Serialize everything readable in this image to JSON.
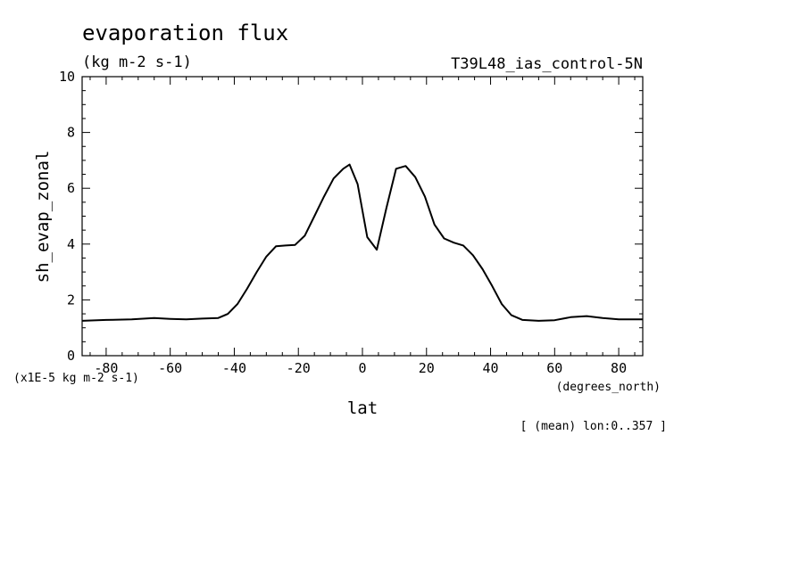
{
  "chart_data": {
    "type": "line",
    "title": "evaporation flux",
    "subtitle": "(kg m-2 s-1)",
    "dataset_label": "T39L48_ias_control-5N",
    "xlabel": "lat",
    "xunits": "(degrees_north)",
    "ylabel": "sh_evap_zonal",
    "yunits": "(x1E-5 kg m-2 s-1)",
    "footnote": "[ (mean) lon:0..357 ]",
    "xlim": [
      -87.5,
      87.5
    ],
    "ylim": [
      0,
      10
    ],
    "xticks": [
      -80,
      -60,
      -40,
      -20,
      0,
      20,
      40,
      60,
      80
    ],
    "xtick_labels": [
      "-80",
      "-60",
      "-40",
      "-20",
      "0",
      "20",
      "40",
      "60",
      "80"
    ],
    "yticks": [
      0,
      2,
      4,
      6,
      8,
      10
    ],
    "ytick_labels": [
      "0",
      "2",
      "4",
      "6",
      "8",
      "10"
    ],
    "grid": false,
    "line_color": "#000000",
    "series": [
      {
        "x": [
          -87.5,
          -80,
          -72,
          -65,
          -60,
          -55,
          -50,
          -45,
          -42,
          -39,
          -36,
          -33,
          -30,
          -27,
          -24,
          -21,
          -18,
          -15,
          -12,
          -9,
          -6,
          -4,
          -1.5,
          1.5,
          4.5,
          7.5,
          10.5,
          13.5,
          16.5,
          19.5,
          22.5,
          25.5,
          28.5,
          31.5,
          34.5,
          37.5,
          40.5,
          43.5,
          46.5,
          50,
          55,
          60,
          65,
          70,
          75,
          80,
          87.5
        ],
        "y": [
          1.25,
          1.28,
          1.3,
          1.35,
          1.32,
          1.3,
          1.33,
          1.35,
          1.5,
          1.85,
          2.4,
          3.0,
          3.55,
          3.92,
          3.95,
          3.97,
          4.3,
          5.0,
          5.7,
          6.35,
          6.7,
          6.85,
          6.15,
          4.25,
          3.8,
          5.3,
          6.7,
          6.8,
          6.4,
          5.7,
          4.7,
          4.2,
          4.05,
          3.95,
          3.6,
          3.1,
          2.5,
          1.85,
          1.45,
          1.28,
          1.25,
          1.27,
          1.38,
          1.42,
          1.35,
          1.3,
          1.3
        ]
      }
    ]
  }
}
